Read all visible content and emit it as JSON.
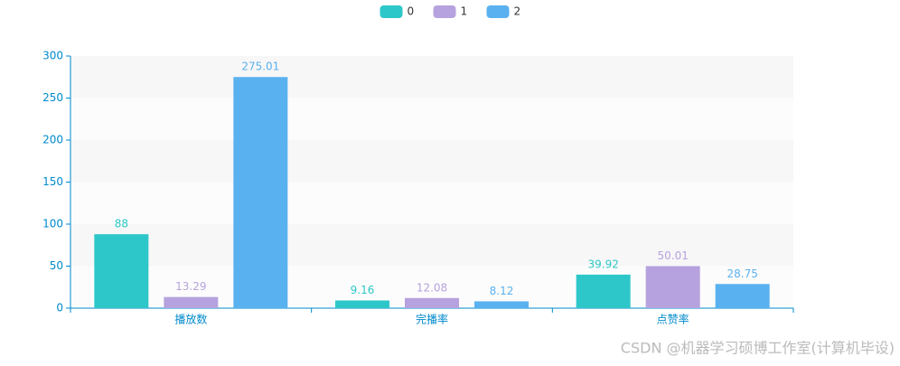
{
  "chart_data": {
    "type": "bar",
    "categories": [
      "播放数",
      "完播率",
      "点赞率"
    ],
    "series": [
      {
        "name": "0",
        "color": "#2ec7c9",
        "values": [
          88,
          9.16,
          39.92
        ]
      },
      {
        "name": "1",
        "color": "#b6a2de",
        "values": [
          13.29,
          12.08,
          50.01
        ]
      },
      {
        "name": "2",
        "color": "#5ab1ef",
        "values": [
          275.01,
          8.12,
          28.75
        ]
      }
    ],
    "ylim": [
      0,
      300
    ],
    "yticks": [
      0,
      50,
      100,
      150,
      200,
      250,
      300
    ],
    "axis_color": "#008acd",
    "split_area": true
  },
  "watermark": "CSDN @机器学习硕博工作室(计算机毕设)"
}
